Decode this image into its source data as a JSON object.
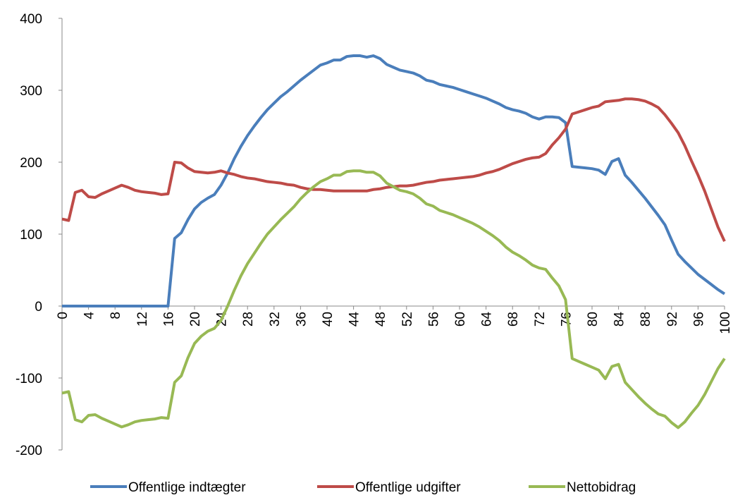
{
  "chart_data": {
    "type": "line",
    "x": [
      0,
      1,
      2,
      3,
      4,
      5,
      6,
      7,
      8,
      9,
      10,
      11,
      12,
      13,
      14,
      15,
      16,
      17,
      18,
      19,
      20,
      21,
      22,
      23,
      24,
      25,
      26,
      27,
      28,
      29,
      30,
      31,
      32,
      33,
      34,
      35,
      36,
      37,
      38,
      39,
      40,
      41,
      42,
      43,
      44,
      45,
      46,
      47,
      48,
      49,
      50,
      51,
      52,
      53,
      54,
      55,
      56,
      57,
      58,
      59,
      60,
      61,
      62,
      63,
      64,
      65,
      66,
      67,
      68,
      69,
      70,
      71,
      72,
      73,
      74,
      75,
      76,
      77,
      78,
      79,
      80,
      81,
      82,
      83,
      84,
      85,
      86,
      87,
      88,
      89,
      90,
      91,
      92,
      93,
      94,
      95,
      96,
      97,
      98,
      99,
      100
    ],
    "series": [
      {
        "name": "Offentlige indtægter",
        "color": "#4a7ebb",
        "values": [
          0,
          0,
          0,
          0,
          0,
          0,
          0,
          0,
          0,
          0,
          0,
          0,
          0,
          0,
          0,
          0,
          0,
          94,
          102,
          120,
          135,
          144,
          150,
          155,
          168,
          185,
          205,
          222,
          237,
          250,
          262,
          273,
          282,
          291,
          298,
          306,
          314,
          321,
          328,
          335,
          338,
          342,
          342,
          347,
          348,
          348,
          346,
          348,
          344,
          336,
          332,
          328,
          326,
          324,
          320,
          314,
          312,
          308,
          306,
          304,
          301,
          298,
          295,
          292,
          289,
          285,
          281,
          276,
          273,
          271,
          268,
          263,
          260,
          263,
          263,
          262,
          255,
          194,
          193,
          192,
          191,
          189,
          183,
          201,
          205,
          182,
          172,
          161,
          150,
          138,
          126,
          113,
          92,
          72,
          62,
          53,
          44,
          37,
          30,
          23,
          17
        ]
      },
      {
        "name": "Offentlige udgifter",
        "color": "#be4b48",
        "values": [
          121,
          119,
          158,
          161,
          152,
          151,
          156,
          160,
          164,
          168,
          165,
          161,
          159,
          158,
          157,
          155,
          156,
          200,
          199,
          192,
          187,
          186,
          185,
          186,
          188,
          185,
          183,
          180,
          178,
          177,
          175,
          173,
          172,
          171,
          169,
          168,
          165,
          163,
          162,
          162,
          161,
          160,
          160,
          160,
          160,
          160,
          160,
          162,
          163,
          165,
          166,
          167,
          167,
          168,
          170,
          172,
          173,
          175,
          176,
          177,
          178,
          179,
          180,
          182,
          185,
          187,
          190,
          194,
          198,
          201,
          204,
          206,
          207,
          212,
          224,
          234,
          246,
          267,
          270,
          273,
          276,
          278,
          284,
          285,
          286,
          288,
          288,
          287,
          285,
          281,
          276,
          266,
          254,
          241,
          223,
          202,
          182,
          160,
          135,
          110,
          90
        ]
      },
      {
        "name": "Nettobidrag",
        "color": "#98b954",
        "values": [
          -121,
          -119,
          -158,
          -161,
          -152,
          -151,
          -156,
          -160,
          -164,
          -168,
          -165,
          -161,
          -159,
          -158,
          -157,
          -155,
          -156,
          -106,
          -97,
          -72,
          -52,
          -42,
          -35,
          -31,
          -20,
          0,
          22,
          42,
          59,
          73,
          87,
          100,
          110,
          120,
          129,
          138,
          149,
          158,
          166,
          173,
          177,
          182,
          182,
          187,
          188,
          188,
          186,
          186,
          181,
          171,
          166,
          161,
          159,
          156,
          150,
          142,
          139,
          133,
          130,
          127,
          123,
          119,
          115,
          110,
          104,
          98,
          91,
          82,
          75,
          70,
          64,
          57,
          53,
          51,
          39,
          28,
          9,
          -73,
          -77,
          -81,
          -85,
          -89,
          -101,
          -84,
          -81,
          -106,
          -116,
          -126,
          -135,
          -143,
          -150,
          -153,
          -162,
          -169,
          -161,
          -149,
          -138,
          -123,
          -105,
          -87,
          -73
        ]
      }
    ],
    "xlim": [
      0,
      100
    ],
    "xticks": [
      0,
      4,
      8,
      12,
      16,
      20,
      24,
      28,
      32,
      36,
      40,
      44,
      48,
      52,
      56,
      60,
      64,
      68,
      72,
      76,
      80,
      84,
      88,
      92,
      96,
      100
    ],
    "ylim": [
      -200,
      400
    ],
    "yticks": [
      -200,
      -100,
      0,
      100,
      200,
      300,
      400
    ],
    "grid": false,
    "legend": "bottom"
  }
}
